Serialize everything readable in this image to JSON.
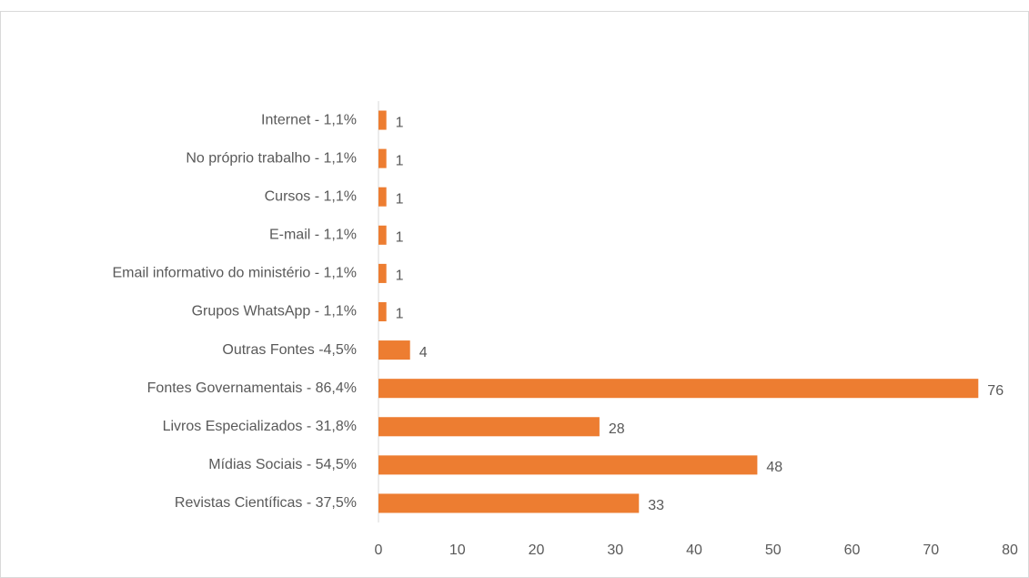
{
  "chart_data": {
    "type": "bar",
    "orientation": "horizontal",
    "categories": [
      "Internet - 1,1%",
      "No próprio trabalho - 1,1%",
      "Cursos - 1,1%",
      "E-mail - 1,1%",
      "Email informativo do ministério - 1,1%",
      "Grupos WhatsApp - 1,1%",
      "Outras Fontes -4,5%",
      "Fontes Governamentais - 86,4%",
      "Livros Especializados - 31,8%",
      "Mídias Sociais - 54,5%",
      "Revistas Científicas - 37,5%"
    ],
    "values": [
      1,
      1,
      1,
      1,
      1,
      1,
      4,
      76,
      28,
      48,
      33
    ],
    "color": "#ed7d31",
    "xlim": [
      0,
      80
    ],
    "xticks": [
      0,
      10,
      20,
      30,
      40,
      50,
      60,
      70,
      80
    ],
    "grid": false
  }
}
